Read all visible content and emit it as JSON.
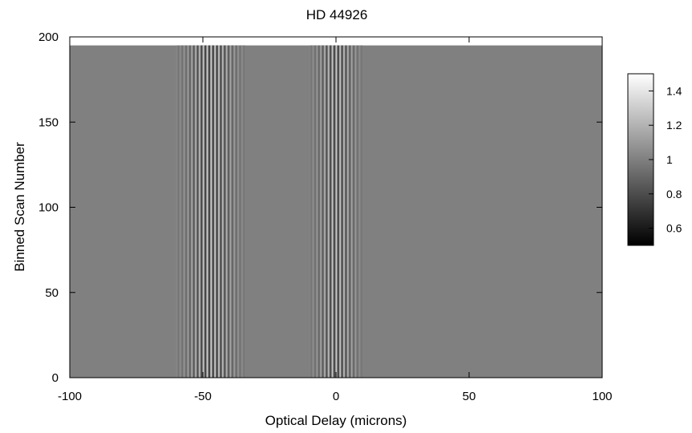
{
  "chart_data": {
    "type": "heatmap",
    "title": "HD 44926",
    "xlabel": "Optical Delay (microns)",
    "ylabel": "Binned Scan Number",
    "xlim": [
      -100,
      100
    ],
    "ylim": [
      0,
      200
    ],
    "data_ylim": [
      0,
      195
    ],
    "xticks": [
      -100,
      -50,
      0,
      50,
      100
    ],
    "xtick_labels": [
      "-100",
      "-50",
      "0",
      "50",
      "100"
    ],
    "yticks": [
      0,
      50,
      100,
      150,
      200
    ],
    "ytick_labels": [
      "0",
      "50",
      "100",
      "150",
      "200"
    ],
    "colormap": "grayscale",
    "background_value": 1.0,
    "fringe_packets": [
      {
        "center": -47,
        "half_width": 13,
        "period": 1.45,
        "amplitude": 0.32
      },
      {
        "center": 0,
        "half_width": 10,
        "period": 1.45,
        "amplitude": 0.3
      }
    ],
    "colorbar": {
      "range": [
        0.5,
        1.5
      ],
      "ticks": [
        0.6,
        0.8,
        1,
        1.2,
        1.4
      ],
      "tick_labels": [
        "0.6",
        "0.8",
        "1",
        "1.2",
        "1.4"
      ],
      "color_low": "#000000",
      "color_high": "#ffffff"
    }
  }
}
